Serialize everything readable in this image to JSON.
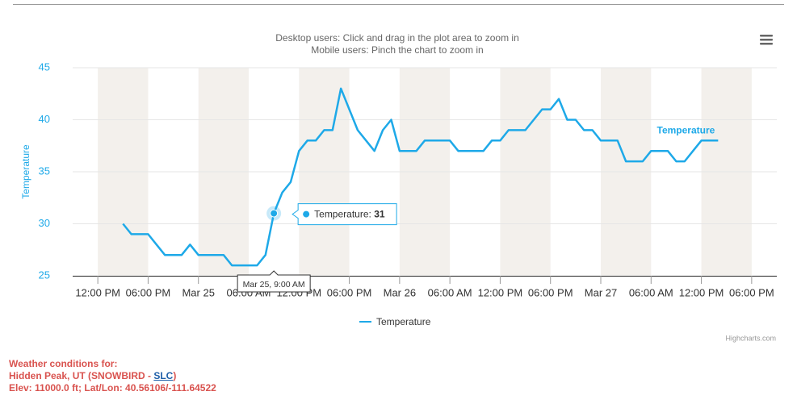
{
  "chart_data": {
    "type": "line",
    "subtitle": [
      "Desktop users: Click and drag in the plot area to zoom in",
      "Mobile users: Pinch the chart to zoom in"
    ],
    "ylabel": "Temperature",
    "x": [
      -9,
      -8,
      -7,
      -6,
      -5,
      -4,
      -3,
      -2,
      -1,
      0,
      1,
      2,
      3,
      4,
      5,
      6,
      7,
      8,
      9,
      10,
      11,
      12,
      13,
      14,
      15,
      16,
      17,
      18,
      19,
      20,
      21,
      22,
      23,
      24,
      25,
      26,
      27,
      28,
      29,
      30,
      31,
      32,
      33,
      34,
      35,
      36,
      37,
      38,
      39,
      40,
      41,
      42,
      43,
      44,
      45,
      46,
      47,
      48,
      49,
      50,
      51,
      52,
      53,
      54,
      55,
      56,
      57,
      58,
      59,
      60,
      61,
      62
    ],
    "series": [
      {
        "name": "Temperature",
        "color": "#1ea9e8",
        "values": [
          30,
          29,
          29,
          29,
          28,
          27,
          27,
          27,
          28,
          27,
          27,
          27,
          27,
          26,
          26,
          26,
          26,
          27,
          31,
          33,
          34,
          37,
          38,
          38,
          39,
          39,
          43,
          41,
          39,
          38,
          37,
          39,
          40,
          37,
          37,
          37,
          38,
          38,
          38,
          38,
          37,
          37,
          37,
          37,
          38,
          38,
          39,
          39,
          39,
          40,
          41,
          41,
          42,
          40,
          40,
          39,
          39,
          38,
          38,
          38,
          36,
          36,
          36,
          37,
          37,
          37,
          36,
          36,
          37,
          38,
          38,
          38
        ]
      }
    ],
    "xlim": [
      -15,
      69
    ],
    "xticks": [
      {
        "value": -12,
        "label": "12:00 PM"
      },
      {
        "value": -6,
        "label": "06:00 PM"
      },
      {
        "value": 0,
        "label": "Mar 25"
      },
      {
        "value": 6,
        "label": "06:00 AM"
      },
      {
        "value": 12,
        "label": "12:00 PM"
      },
      {
        "value": 18,
        "label": "06:00 PM"
      },
      {
        "value": 24,
        "label": "Mar 26"
      },
      {
        "value": 30,
        "label": "06:00 AM"
      },
      {
        "value": 36,
        "label": "12:00 PM"
      },
      {
        "value": 42,
        "label": "06:00 PM"
      },
      {
        "value": 48,
        "label": "Mar 27"
      },
      {
        "value": 54,
        "label": "06:00 AM"
      },
      {
        "value": 60,
        "label": "12:00 PM"
      },
      {
        "value": 66,
        "label": "06:00 PM"
      }
    ],
    "ylim": [
      25,
      45
    ],
    "yticks": [
      25,
      30,
      35,
      40,
      45
    ],
    "grid": true,
    "tooltip": {
      "header": "Mar 25, 9:00 AM",
      "label": "Temperature:",
      "value": 31
    },
    "credits": "Highcharts.com"
  },
  "footer": {
    "line1": "Weather conditions for:",
    "line2_start": "Hidden Peak, UT (SNOWBIRD - ",
    "link": "SLC",
    "line2_end": ")",
    "line3": "Elev: 11000.0 ft; Lat/Lon: 40.56106/-111.64522"
  }
}
